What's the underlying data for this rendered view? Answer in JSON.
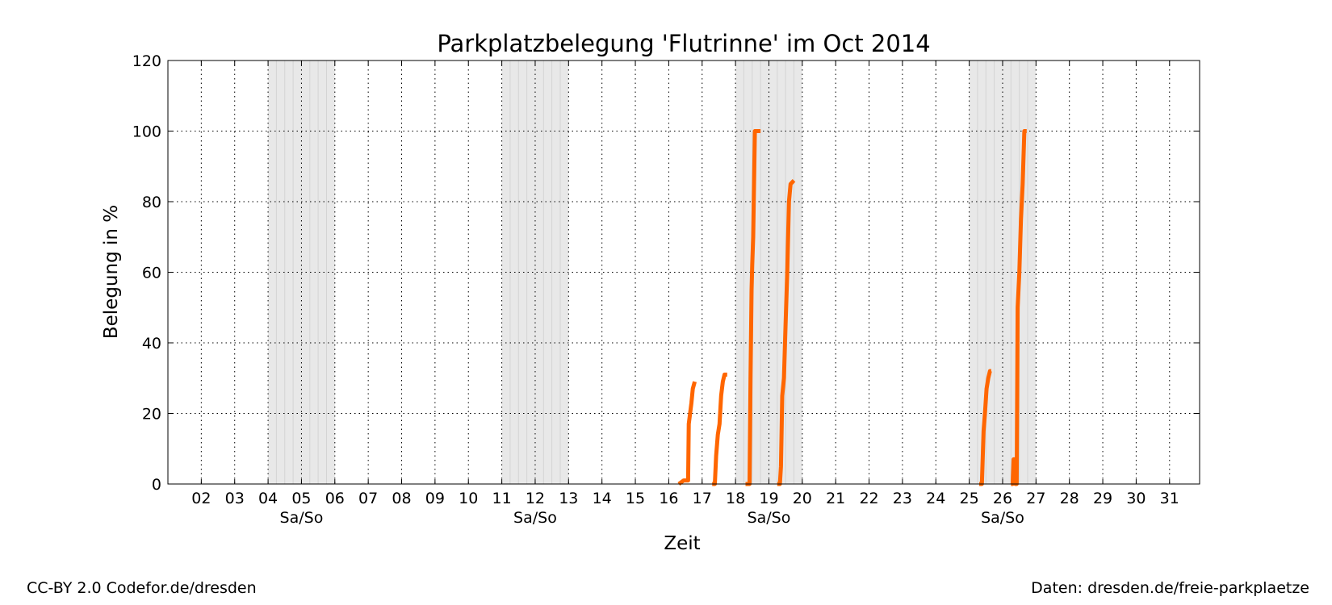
{
  "chart_data": {
    "type": "line",
    "title": "Parkplatzbelegung 'Flutrinne' im Oct 2014",
    "xlabel": "Zeit",
    "ylabel": "Belegung in %",
    "xlim": [
      1,
      31.9
    ],
    "ylim": [
      0,
      120
    ],
    "yticks": [
      0,
      20,
      40,
      60,
      80,
      100,
      120
    ],
    "xticks": [
      "02",
      "03",
      "04",
      "05",
      "06",
      "07",
      "08",
      "09",
      "10",
      "11",
      "12",
      "13",
      "14",
      "15",
      "16",
      "17",
      "18",
      "19",
      "20",
      "21",
      "22",
      "23",
      "24",
      "25",
      "26",
      "27",
      "28",
      "29",
      "30",
      "31"
    ],
    "weekend_label": "Sa/So",
    "weekends": [
      [
        4,
        6
      ],
      [
        11,
        13
      ],
      [
        18,
        20
      ],
      [
        25,
        27
      ]
    ],
    "grid": true,
    "line_color": "#ff6600",
    "weekend_shade_color": "#e8e8e8",
    "series": [
      {
        "segments": [
          [
            [
              16.3,
              0
            ],
            [
              16.45,
              1
            ],
            [
              16.58,
              1
            ],
            [
              16.6,
              17
            ],
            [
              16.68,
              23
            ],
            [
              16.72,
              27
            ],
            [
              16.78,
              29
            ]
          ],
          [
            [
              17.3,
              0
            ],
            [
              17.38,
              0
            ],
            [
              17.42,
              8
            ],
            [
              17.47,
              14
            ],
            [
              17.52,
              17
            ],
            [
              17.57,
              25
            ],
            [
              17.62,
              29
            ],
            [
              17.67,
              31
            ],
            [
              17.75,
              31
            ]
          ],
          [
            [
              18.3,
              0
            ],
            [
              18.42,
              0
            ],
            [
              18.45,
              30
            ],
            [
              18.48,
              55
            ],
            [
              18.5,
              62
            ],
            [
              18.53,
              70
            ],
            [
              18.58,
              100
            ],
            [
              18.75,
              100
            ]
          ],
          [
            [
              19.25,
              0
            ],
            [
              19.33,
              0
            ],
            [
              19.36,
              5
            ],
            [
              19.4,
              25
            ],
            [
              19.45,
              30
            ],
            [
              19.5,
              45
            ],
            [
              19.55,
              60
            ],
            [
              19.6,
              80
            ],
            [
              19.65,
              85
            ],
            [
              19.75,
              86
            ]
          ],
          [
            [
              25.3,
              0
            ],
            [
              25.38,
              0
            ],
            [
              25.43,
              15
            ],
            [
              25.47,
              20
            ],
            [
              25.52,
              27
            ],
            [
              25.57,
              30
            ],
            [
              25.62,
              32
            ],
            [
              25.66,
              32
            ]
          ],
          [
            [
              26.25,
              0
            ],
            [
              26.3,
              0
            ],
            [
              26.33,
              7
            ],
            [
              26.36,
              7
            ],
            [
              26.38,
              0
            ],
            [
              26.42,
              0
            ],
            [
              26.45,
              50
            ],
            [
              26.5,
              60
            ],
            [
              26.55,
              75
            ],
            [
              26.6,
              85
            ],
            [
              26.65,
              100
            ],
            [
              26.72,
              100
            ]
          ]
        ]
      }
    ]
  },
  "footer": {
    "left": "CC-BY 2.0 Codefor.de/dresden",
    "right": "Daten: dresden.de/freie-parkplaetze"
  }
}
